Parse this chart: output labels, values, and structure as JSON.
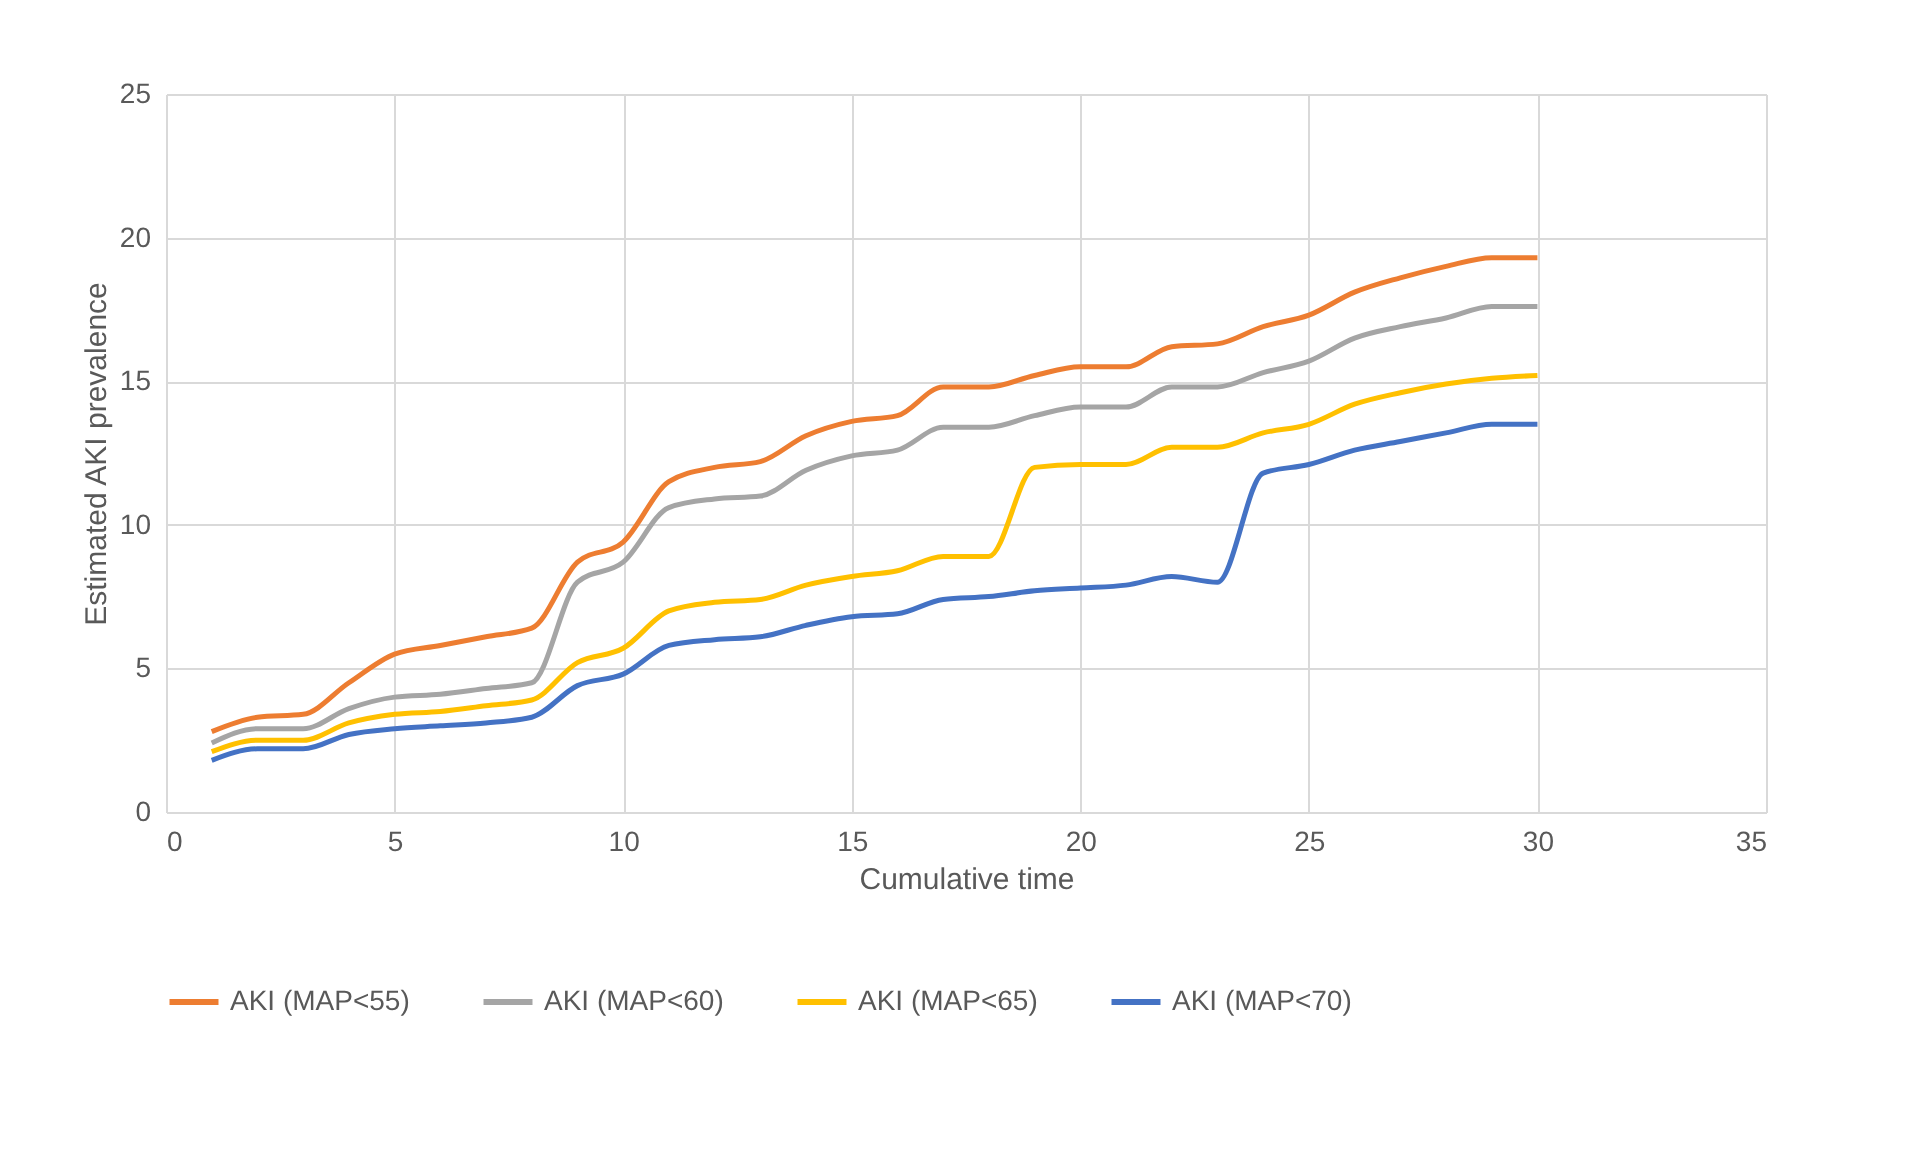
{
  "chart_data": {
    "type": "line",
    "xlabel": "Cumulative time",
    "ylabel": "Estimated AKI prevalence",
    "x": [
      1,
      2,
      3,
      4,
      5,
      6,
      7,
      8,
      9,
      10,
      11,
      12,
      13,
      14,
      15,
      16,
      17,
      18,
      19,
      20,
      21,
      22,
      23,
      24,
      25,
      26,
      27,
      28,
      29,
      30
    ],
    "xlim": [
      0,
      35
    ],
    "xticks": [
      0,
      5,
      10,
      15,
      20,
      25,
      30,
      35
    ],
    "ylim": [
      0,
      25
    ],
    "yticks": [
      0,
      5,
      10,
      15,
      20,
      25
    ],
    "grid": true,
    "legend": "bottom",
    "marker": "none",
    "line_style": "solid",
    "series": [
      {
        "name": "AKI (MAP<55)",
        "color": "#ed7d31",
        "values": [
          2.8,
          3.3,
          3.4,
          4.5,
          5.5,
          5.8,
          6.1,
          6.4,
          8.7,
          9.4,
          11.5,
          12.0,
          12.2,
          13.1,
          13.6,
          13.8,
          14.8,
          14.8,
          15.2,
          15.5,
          15.5,
          16.2,
          16.3,
          16.9,
          17.3,
          18.1,
          18.6,
          19.0,
          19.3,
          19.3
        ]
      },
      {
        "name": "AKI (MAP<60)",
        "color": "#a5a5a5",
        "values": [
          2.4,
          2.9,
          2.9,
          3.6,
          4.0,
          4.1,
          4.3,
          4.5,
          8.0,
          8.7,
          10.6,
          10.9,
          11.0,
          11.9,
          12.4,
          12.6,
          13.4,
          13.4,
          13.8,
          14.1,
          14.1,
          14.8,
          14.8,
          15.3,
          15.7,
          16.5,
          16.9,
          17.2,
          17.6,
          17.6
        ]
      },
      {
        "name": "AKI (MAP<65)",
        "color": "#ffc000",
        "values": [
          2.1,
          2.5,
          2.5,
          3.1,
          3.4,
          3.5,
          3.7,
          3.9,
          5.2,
          5.7,
          7.0,
          7.3,
          7.4,
          7.9,
          8.2,
          8.4,
          8.9,
          8.9,
          12.0,
          12.1,
          12.1,
          12.7,
          12.7,
          13.2,
          13.5,
          14.2,
          14.6,
          14.9,
          15.1,
          15.2
        ]
      },
      {
        "name": "AKI (MAP<70)",
        "color": "#4472c4",
        "values": [
          1.8,
          2.2,
          2.2,
          2.7,
          2.9,
          3.0,
          3.1,
          3.3,
          4.4,
          4.8,
          5.8,
          6.0,
          6.1,
          6.5,
          6.8,
          6.9,
          7.4,
          7.5,
          7.7,
          7.8,
          7.9,
          8.2,
          8.0,
          11.8,
          12.1,
          12.6,
          12.9,
          13.2,
          13.5,
          13.5
        ]
      }
    ]
  }
}
